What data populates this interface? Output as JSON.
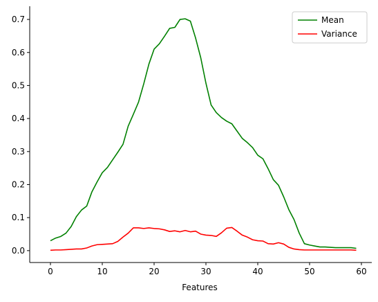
{
  "chart_data": {
    "type": "line",
    "title": "",
    "xlabel": "Features",
    "ylabel": "",
    "xlim": [
      -4,
      62
    ],
    "ylim": [
      -0.036,
      0.74
    ],
    "xticks": [
      0,
      10,
      20,
      30,
      40,
      50,
      60
    ],
    "yticks": [
      0.0,
      0.1,
      0.2,
      0.3,
      0.4,
      0.5,
      0.6,
      0.7
    ],
    "grid": false,
    "legend_position": "top-right",
    "x": [
      0,
      1,
      2,
      3,
      4,
      5,
      6,
      7,
      8,
      9,
      10,
      11,
      12,
      13,
      14,
      15,
      16,
      17,
      18,
      19,
      20,
      21,
      22,
      23,
      24,
      25,
      26,
      27,
      28,
      29,
      30,
      31,
      32,
      33,
      34,
      35,
      36,
      37,
      38,
      39,
      40,
      41,
      42,
      43,
      44,
      45,
      46,
      47,
      48,
      49,
      50,
      51,
      52,
      53,
      54,
      55,
      56,
      57,
      58,
      59
    ],
    "series": [
      {
        "name": "Mean",
        "color": "#008000",
        "values": [
          0.03,
          0.038,
          0.043,
          0.053,
          0.073,
          0.103,
          0.123,
          0.135,
          0.178,
          0.208,
          0.236,
          0.252,
          0.275,
          0.298,
          0.322,
          0.377,
          0.413,
          0.45,
          0.505,
          0.565,
          0.61,
          0.626,
          0.649,
          0.673,
          0.676,
          0.7,
          0.702,
          0.695,
          0.644,
          0.584,
          0.507,
          0.441,
          0.418,
          0.403,
          0.392,
          0.384,
          0.362,
          0.34,
          0.327,
          0.312,
          0.289,
          0.278,
          0.248,
          0.215,
          0.198,
          0.163,
          0.124,
          0.094,
          0.053,
          0.021,
          0.017,
          0.014,
          0.011,
          0.011,
          0.01,
          0.009,
          0.009,
          0.009,
          0.009,
          0.007
        ]
      },
      {
        "name": "Variance",
        "color": "#ff0000",
        "values": [
          0.001,
          0.002,
          0.002,
          0.003,
          0.004,
          0.005,
          0.005,
          0.008,
          0.014,
          0.018,
          0.019,
          0.02,
          0.021,
          0.028,
          0.041,
          0.053,
          0.069,
          0.069,
          0.067,
          0.069,
          0.067,
          0.066,
          0.063,
          0.058,
          0.06,
          0.057,
          0.061,
          0.057,
          0.059,
          0.05,
          0.047,
          0.046,
          0.043,
          0.054,
          0.068,
          0.07,
          0.059,
          0.047,
          0.041,
          0.033,
          0.03,
          0.029,
          0.021,
          0.02,
          0.024,
          0.02,
          0.01,
          0.005,
          0.003,
          0.002,
          0.002,
          0.002,
          0.002,
          0.002,
          0.002,
          0.002,
          0.002,
          0.002,
          0.002,
          0.001
        ]
      }
    ]
  }
}
